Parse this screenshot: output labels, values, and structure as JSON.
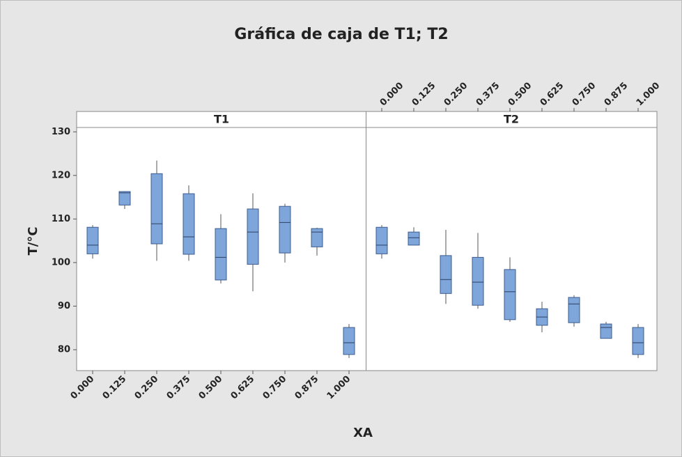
{
  "chart_data": {
    "type": "box",
    "title": "Gráfica de caja de T1; T2",
    "xlabel": "XA",
    "ylabel": "T/°C",
    "categories": [
      "0.000",
      "0.125",
      "0.250",
      "0.375",
      "0.500",
      "0.625",
      "0.750",
      "0.875",
      "1.000"
    ],
    "ylim": [
      75.2,
      131
    ],
    "yticks": [
      80,
      90,
      100,
      110,
      120,
      130
    ],
    "color": "#7ea6da",
    "panels": [
      {
        "name": "T1",
        "boxes": [
          {
            "low": 100.9,
            "q1": 102,
            "median": 104,
            "q3": 108.1,
            "high": 108.6
          },
          {
            "low": 112.3,
            "q1": 113.2,
            "median": 116,
            "q3": 116.3,
            "high": 116.4
          },
          {
            "low": 100.4,
            "q1": 104.3,
            "median": 108.9,
            "q3": 120.4,
            "high": 123.4
          },
          {
            "low": 100.4,
            "q1": 101.9,
            "median": 105.9,
            "q3": 115.8,
            "high": 117.7
          },
          {
            "low": 95.2,
            "q1": 96,
            "median": 101.2,
            "q3": 107.8,
            "high": 111.1
          },
          {
            "low": 93.4,
            "q1": 99.6,
            "median": 107,
            "q3": 112.3,
            "high": 115.9
          },
          {
            "low": 100,
            "q1": 102.2,
            "median": 109.2,
            "q3": 112.9,
            "high": 113.5
          },
          {
            "low": 101.6,
            "q1": 103.6,
            "median": 107,
            "q3": 107.8,
            "high": 108
          },
          {
            "low": 78.1,
            "q1": 78.9,
            "median": 81.6,
            "q3": 85.1,
            "high": 85.9
          }
        ]
      },
      {
        "name": "T2",
        "boxes": [
          {
            "low": 100.9,
            "q1": 102,
            "median": 104,
            "q3": 108.1,
            "high": 108.6
          },
          {
            "low": 104,
            "q1": 104,
            "median": 105.7,
            "q3": 107,
            "high": 108.1
          },
          {
            "low": 90.5,
            "q1": 92.9,
            "median": 96.1,
            "q3": 101.6,
            "high": 107.5
          },
          {
            "low": 89.4,
            "q1": 90.2,
            "median": 95.5,
            "q3": 101.2,
            "high": 106.8
          },
          {
            "low": 86.4,
            "q1": 86.9,
            "median": 93.3,
            "q3": 98.4,
            "high": 101.2
          },
          {
            "low": 84,
            "q1": 85.6,
            "median": 87.5,
            "q3": 89.4,
            "high": 91
          },
          {
            "low": 85.3,
            "q1": 86.2,
            "median": 90.5,
            "q3": 92,
            "high": 92.5
          },
          {
            "low": 82.6,
            "q1": 82.6,
            "median": 85.1,
            "q3": 85.9,
            "high": 86.4
          },
          {
            "low": 78.1,
            "q1": 78.9,
            "median": 81.6,
            "q3": 85.1,
            "high": 85.9
          }
        ]
      }
    ]
  }
}
